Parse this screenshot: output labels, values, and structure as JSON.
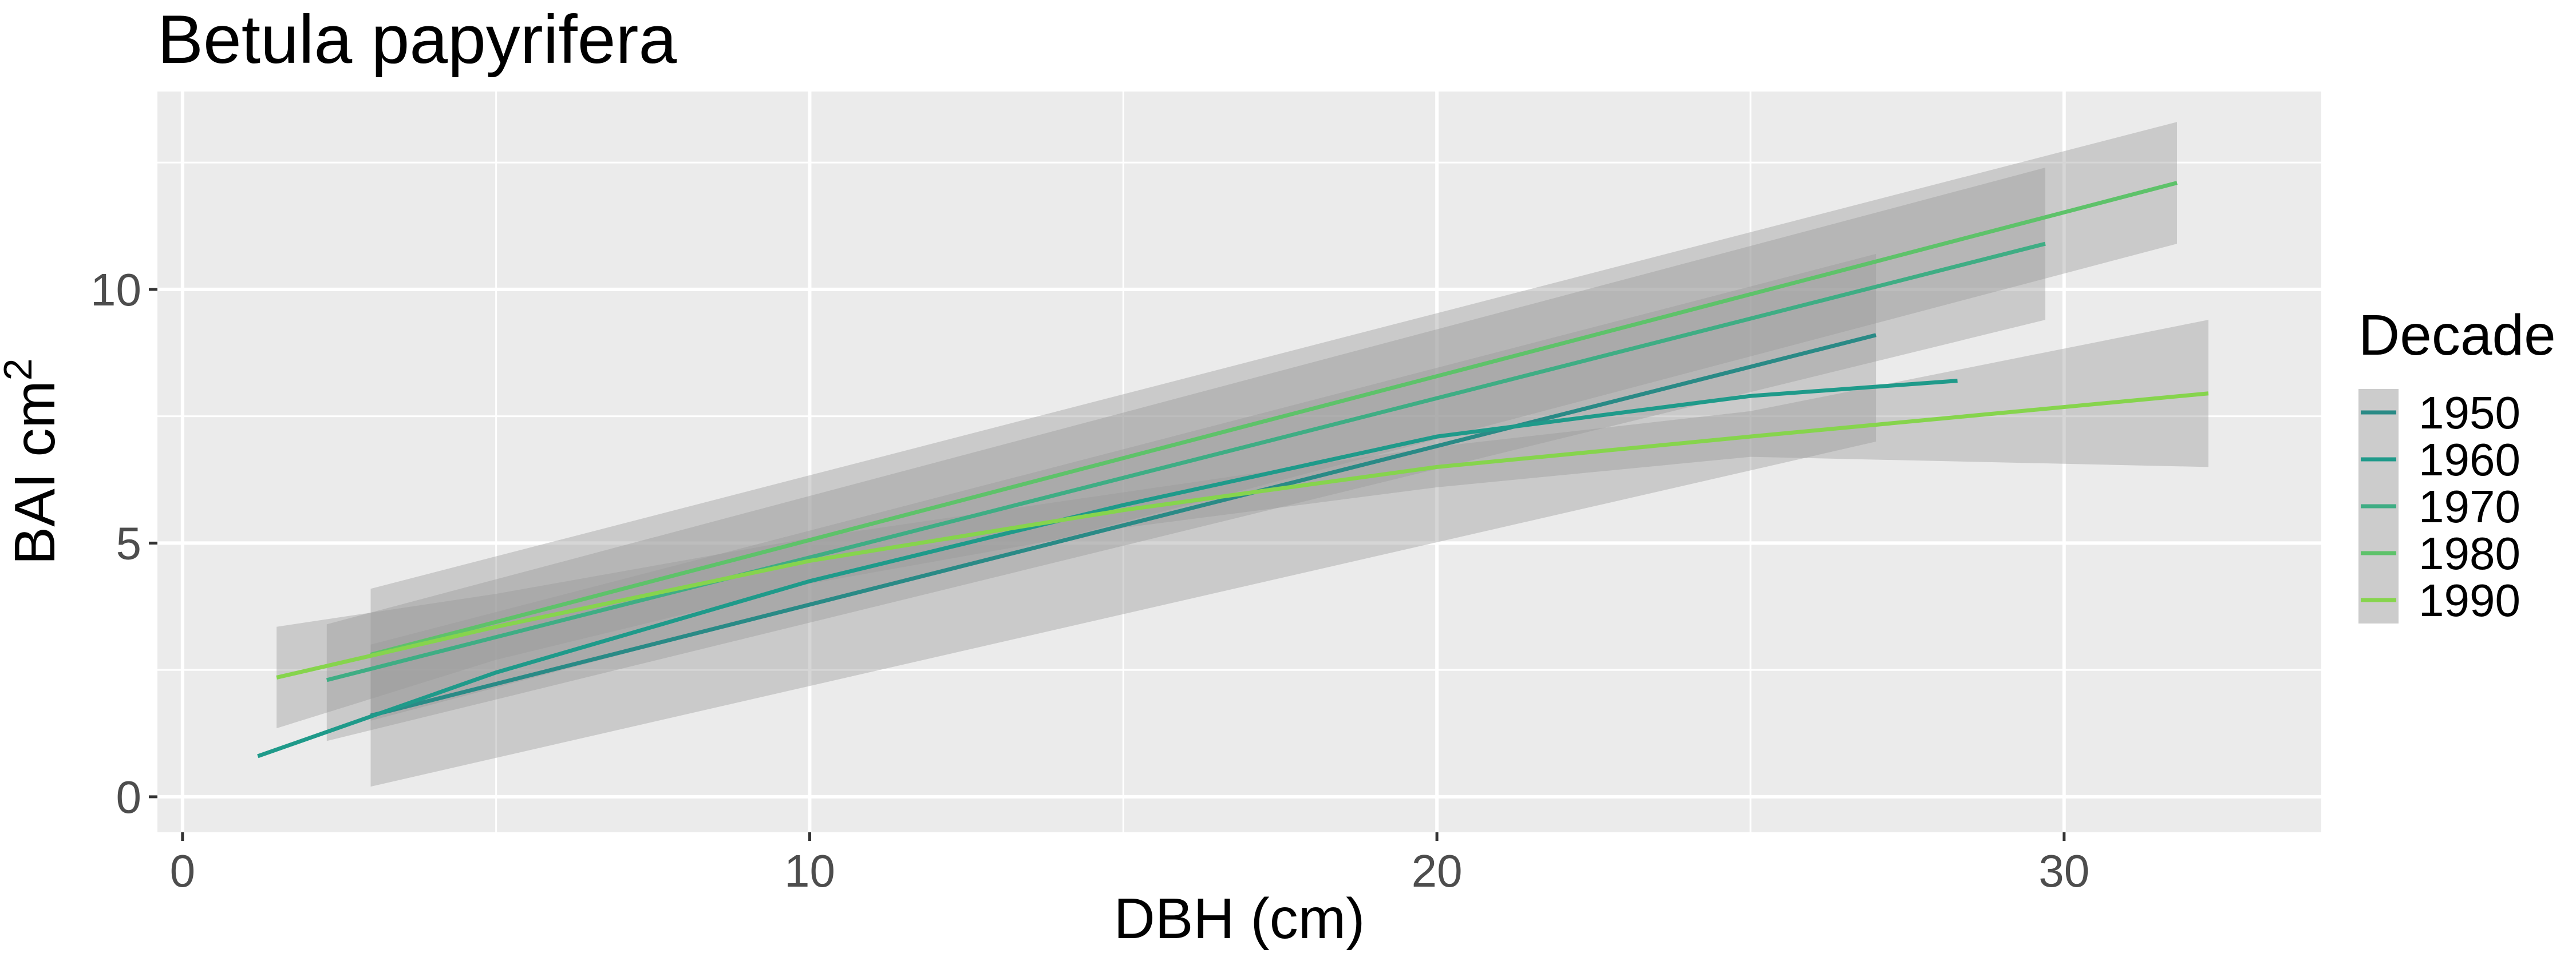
{
  "chart_data": {
    "type": "line",
    "title": "Betula papyrifera",
    "xlabel": "DBH (cm)",
    "ylabel_main": "BAI cm",
    "ylabel_sup": "2",
    "xlim": [
      -0.4,
      34.1
    ],
    "ylim": [
      -0.7,
      13.9
    ],
    "xticks": [
      0,
      10,
      20,
      30
    ],
    "xtick_labels": [
      "0",
      "10",
      "20",
      "30"
    ],
    "yticks": [
      0,
      5,
      10
    ],
    "ytick_labels": [
      "0",
      "5",
      "10"
    ],
    "grid": true,
    "legend": {
      "title": "Decade",
      "position": "right"
    },
    "colors": {
      "panel_bg": "#ebebeb",
      "grid": "#ffffff",
      "ribbon": "#999999",
      "legend_key_bg": "#cccccc"
    },
    "series": [
      {
        "name": "1950",
        "color": "#2a8a86",
        "x": [
          3.0,
          27.0
        ],
        "y": [
          1.6,
          9.1
        ],
        "lower": [
          0.2,
          7.0
        ],
        "upper": [
          3.0,
          10.7
        ]
      },
      {
        "name": "1960",
        "color": "#1f9a8a",
        "x": [
          1.2,
          5,
          10,
          15,
          20,
          25,
          28.3
        ],
        "y": [
          0.8,
          2.45,
          4.25,
          5.75,
          7.1,
          7.9,
          8.2
        ],
        "lower": [
          null,
          null,
          null,
          null,
          null,
          null,
          6.5
        ],
        "upper": [
          null,
          null,
          null,
          null,
          null,
          null,
          9.8
        ]
      },
      {
        "name": "1970",
        "color": "#3fad84",
        "x": [
          2.3,
          29.7
        ],
        "y": [
          2.3,
          10.9
        ],
        "lower": [
          1.1,
          9.4
        ],
        "upper": [
          3.4,
          12.4
        ]
      },
      {
        "name": "1980",
        "color": "#5ec26a",
        "x": [
          3.0,
          31.8
        ],
        "y": [
          2.8,
          12.1
        ],
        "lower": [
          1.5,
          10.9
        ],
        "upper": [
          4.1,
          13.3
        ]
      },
      {
        "name": "1990",
        "color": "#86d44d",
        "x": [
          1.5,
          5,
          10,
          15,
          20,
          25,
          32.3
        ],
        "y": [
          2.35,
          3.35,
          4.65,
          5.65,
          6.5,
          7.1,
          7.95
        ],
        "lower": [
          1.35,
          2.7,
          4.2,
          5.3,
          6.1,
          6.7,
          6.5
        ],
        "upper": [
          3.35,
          4.0,
          5.1,
          6.0,
          6.9,
          7.6,
          9.4
        ]
      }
    ]
  }
}
